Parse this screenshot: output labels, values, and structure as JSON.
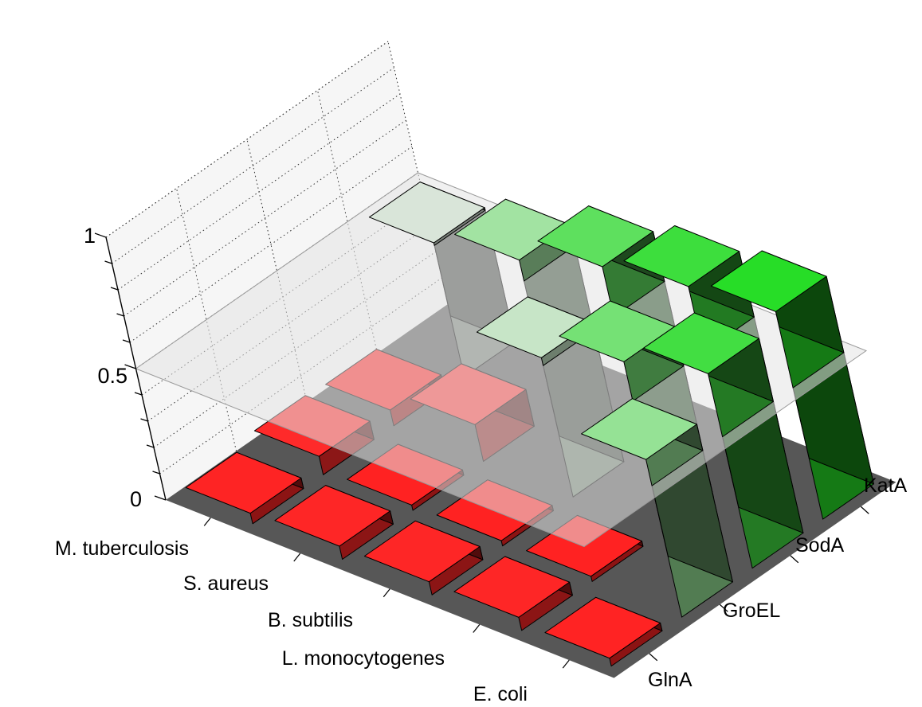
{
  "chart_data": {
    "type": "bar3d",
    "organisms": [
      "M. tuberculosis",
      "S. aureus",
      "B. subtilis",
      "L. monocytogenes",
      "E. coli"
    ],
    "proteins": [
      "GlnA",
      "GroEL",
      "SodA",
      "KatA"
    ],
    "z_ticks": [
      "0",
      "0.5",
      "1"
    ],
    "zlim": [
      0,
      1
    ],
    "threshold_plane": 0.5,
    "grid": true,
    "values": [
      [
        0.04,
        0.07,
        0.06,
        0.51
      ],
      [
        0.05,
        0.02,
        0.14,
        0.58
      ],
      [
        0.05,
        0.02,
        0.53,
        0.69
      ],
      [
        0.05,
        0.02,
        0.65,
        0.75
      ],
      [
        0.03,
        0.6,
        0.74,
        0.79
      ]
    ],
    "colors": {
      "low": "#ff2020",
      "high": "#22dd22",
      "neutral": "#e6e6e6",
      "floor": "#575757"
    }
  }
}
